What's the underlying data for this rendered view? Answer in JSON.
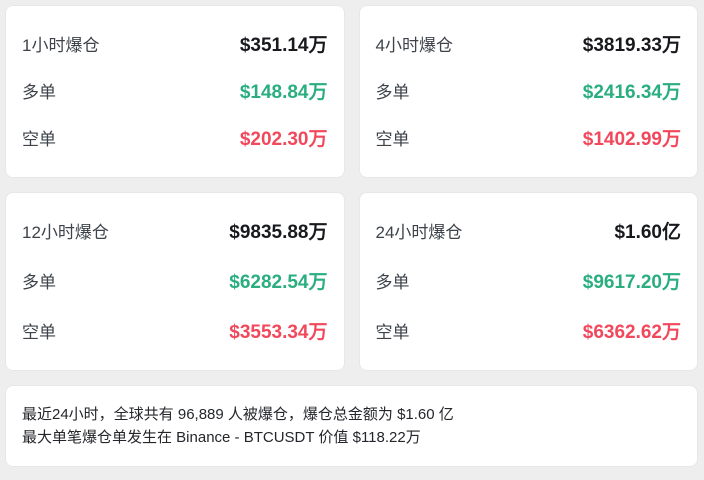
{
  "theme": {
    "page_bg": "#eeeeee",
    "card_bg": "#ffffff",
    "card_border": "#e7e7e7",
    "label_color": "#3d434a",
    "total_color": "#17191d",
    "long_color": "#2aae80",
    "short_color": "#f1485c",
    "summary_text_color": "#24262b"
  },
  "labels": {
    "long": "多单",
    "short": "空单"
  },
  "cards": [
    {
      "title": "1小时爆仓",
      "total": "$351.14万",
      "long": "$148.84万",
      "short": "$202.30万"
    },
    {
      "title": "4小时爆仓",
      "total": "$3819.33万",
      "long": "$2416.34万",
      "short": "$1402.99万"
    },
    {
      "title": "12小时爆仓",
      "total": "$9835.88万",
      "long": "$6282.54万",
      "short": "$3553.34万"
    },
    {
      "title": "24小时爆仓",
      "total": "$1.60亿",
      "long": "$9617.20万",
      "short": "$6362.62万"
    }
  ],
  "summary": {
    "line1": "最近24小时，全球共有 96,889 人被爆仓，爆仓总金额为 $1.60 亿",
    "line2": "最大单笔爆仓单发生在 Binance - BTCUSDT 价值 $118.22万"
  }
}
